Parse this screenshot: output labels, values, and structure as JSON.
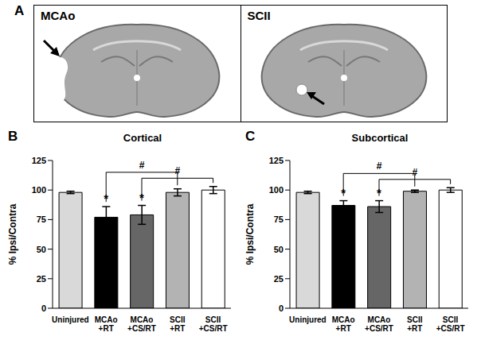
{
  "panel_a": {
    "label": "A",
    "images": [
      {
        "label": "MCAo"
      },
      {
        "label": "SCII"
      }
    ]
  },
  "chart_data": [
    {
      "type": "bar",
      "label": "B",
      "title": "Cortical",
      "y_label": "% Ipsi/Contra",
      "categories": [
        "Uninjured",
        "MCAo\n+RT",
        "MCAo\n+CS/RT",
        "SCII\n+RT",
        "SCII\n+CS/RT"
      ],
      "values": [
        98,
        77,
        79,
        98,
        100
      ],
      "errors": [
        1,
        9,
        8,
        3,
        3
      ],
      "colors": [
        "#d9d9d9",
        "#000000",
        "#666666",
        "#b3b3b3",
        "#ffffff"
      ],
      "ylim": [
        0,
        125
      ],
      "yticks": [
        0,
        25,
        50,
        75,
        100,
        125
      ],
      "annotations": [
        {
          "category": "MCAo\n+RT",
          "text": "*"
        },
        {
          "category": "MCAo\n+CS/RT",
          "text": "*"
        }
      ],
      "brackets": [
        {
          "from": "MCAo\n+RT",
          "to": "SCII\n+RT",
          "text": "#"
        },
        {
          "from": "MCAo\n+CS/RT",
          "to": "SCII\n+CS/RT",
          "text": "#"
        }
      ]
    },
    {
      "type": "bar",
      "label": "C",
      "title": "Subcortical",
      "y_label": "% Ipsi/Contra",
      "categories": [
        "Uninjured",
        "MCAo\n+RT",
        "MCAo\n+CS/RT",
        "SCII\n+RT",
        "SCII\n+CS/RT"
      ],
      "values": [
        98,
        87,
        86,
        99,
        100
      ],
      "errors": [
        1,
        4,
        5,
        1,
        2
      ],
      "colors": [
        "#d9d9d9",
        "#000000",
        "#666666",
        "#b3b3b3",
        "#ffffff"
      ],
      "ylim": [
        0,
        125
      ],
      "yticks": [
        0,
        25,
        50,
        75,
        100,
        125
      ],
      "annotations": [
        {
          "category": "MCAo\n+RT",
          "text": "*"
        },
        {
          "category": "MCAo\n+CS/RT",
          "text": "*"
        }
      ],
      "brackets": [
        {
          "from": "MCAo\n+RT",
          "to": "SCII\n+RT",
          "text": "#"
        },
        {
          "from": "MCAo\n+CS/RT",
          "to": "SCII\n+CS/RT",
          "text": "#"
        }
      ]
    }
  ]
}
